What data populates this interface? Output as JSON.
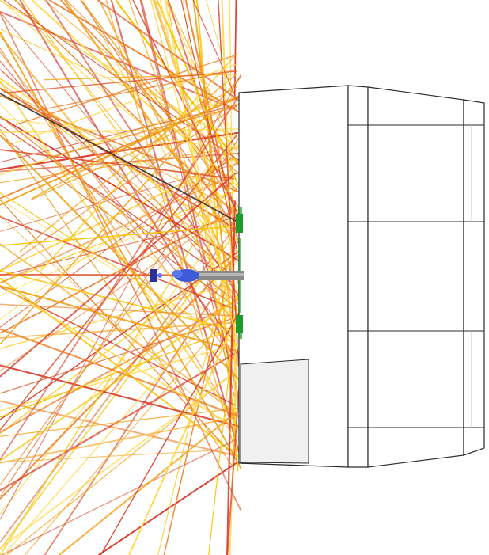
{
  "scene": {
    "background": "#ffffff",
    "ray_colors": [
      "#f7c400",
      "#f2a21a",
      "#ee7f2a",
      "#e0572d",
      "#d73a2a",
      "#ffd84a"
    ],
    "dark_ray_color": "#3a2e2a",
    "structure": {
      "fill": "#ffffff",
      "stroke": "#2a2a2a",
      "shaded_block_fill": "#f0f0f0"
    },
    "markers": {
      "sensor_color": "#1f9a2c",
      "source_color": "#3d5bd8",
      "source_core_color": "#2a2f9a",
      "probe_color": "#8a8a8a"
    }
  }
}
